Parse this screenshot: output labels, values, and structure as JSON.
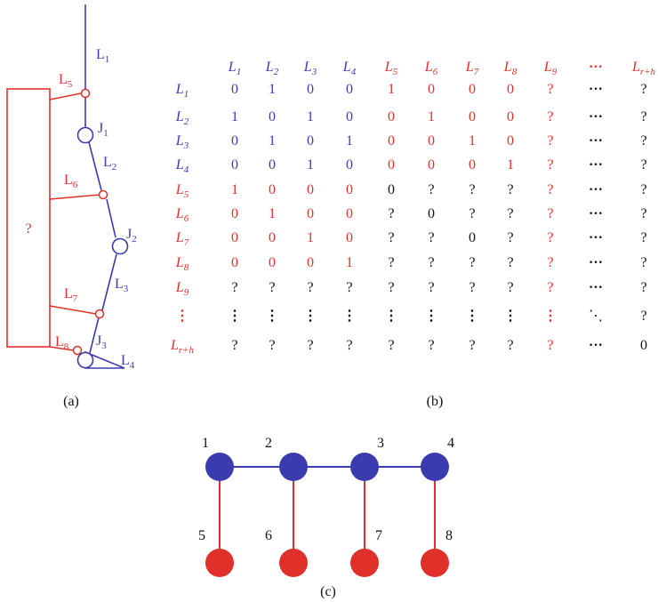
{
  "colors": {
    "blue": "#3b3bb0",
    "red": "#e0302a",
    "black": "#111111"
  },
  "panel_a": {
    "caption": "(a)",
    "box_label": "?",
    "links": [
      {
        "id": "L1",
        "base": "L",
        "sub": "1",
        "color": "blue"
      },
      {
        "id": "L2",
        "base": "L",
        "sub": "2",
        "color": "blue"
      },
      {
        "id": "L3",
        "base": "L",
        "sub": "3",
        "color": "blue"
      },
      {
        "id": "L4",
        "base": "L",
        "sub": "4",
        "color": "blue"
      },
      {
        "id": "L5",
        "base": "L",
        "sub": "5",
        "color": "red"
      },
      {
        "id": "L6",
        "base": "L",
        "sub": "6",
        "color": "red"
      },
      {
        "id": "L7",
        "base": "L",
        "sub": "7",
        "color": "red"
      },
      {
        "id": "L8",
        "base": "L",
        "sub": "8",
        "color": "red"
      }
    ],
    "joints": [
      {
        "id": "J1",
        "base": "J",
        "sub": "1"
      },
      {
        "id": "J2",
        "base": "J",
        "sub": "2"
      },
      {
        "id": "J3",
        "base": "J",
        "sub": "3"
      }
    ]
  },
  "panel_b": {
    "caption": "(b)",
    "columns": [
      {
        "base": "L",
        "sub": "1",
        "color": "blue"
      },
      {
        "base": "L",
        "sub": "2",
        "color": "blue"
      },
      {
        "base": "L",
        "sub": "3",
        "color": "blue"
      },
      {
        "base": "L",
        "sub": "4",
        "color": "blue"
      },
      {
        "base": "L",
        "sub": "5",
        "color": "red"
      },
      {
        "base": "L",
        "sub": "6",
        "color": "red"
      },
      {
        "base": "L",
        "sub": "7",
        "color": "red"
      },
      {
        "base": "L",
        "sub": "8",
        "color": "red"
      },
      {
        "base": "L",
        "sub": "9",
        "color": "red"
      },
      {
        "base": "···",
        "sub": "",
        "color": "red"
      },
      {
        "base": "L",
        "sub": "r+h",
        "color": "red"
      }
    ],
    "rows": [
      {
        "label": {
          "base": "L",
          "sub": "1",
          "color": "blue"
        },
        "cells": [
          [
            "0",
            "blue"
          ],
          [
            "1",
            "blue"
          ],
          [
            "0",
            "blue"
          ],
          [
            "0",
            "blue"
          ],
          [
            "1",
            "red"
          ],
          [
            "0",
            "red"
          ],
          [
            "0",
            "red"
          ],
          [
            "0",
            "red"
          ],
          [
            "?",
            "red"
          ],
          [
            "···",
            "black"
          ],
          [
            "?",
            "black"
          ]
        ]
      },
      {
        "label": {
          "base": "L",
          "sub": "2",
          "color": "blue"
        },
        "cells": [
          [
            "1",
            "blue"
          ],
          [
            "0",
            "blue"
          ],
          [
            "1",
            "blue"
          ],
          [
            "0",
            "blue"
          ],
          [
            "0",
            "red"
          ],
          [
            "1",
            "red"
          ],
          [
            "0",
            "red"
          ],
          [
            "0",
            "red"
          ],
          [
            "?",
            "red"
          ],
          [
            "···",
            "black"
          ],
          [
            "?",
            "black"
          ]
        ]
      },
      {
        "label": {
          "base": "L",
          "sub": "3",
          "color": "blue"
        },
        "cells": [
          [
            "0",
            "blue"
          ],
          [
            "1",
            "blue"
          ],
          [
            "0",
            "blue"
          ],
          [
            "1",
            "blue"
          ],
          [
            "0",
            "red"
          ],
          [
            "0",
            "red"
          ],
          [
            "1",
            "red"
          ],
          [
            "0",
            "red"
          ],
          [
            "?",
            "red"
          ],
          [
            "···",
            "black"
          ],
          [
            "?",
            "black"
          ]
        ]
      },
      {
        "label": {
          "base": "L",
          "sub": "4",
          "color": "blue"
        },
        "cells": [
          [
            "0",
            "blue"
          ],
          [
            "0",
            "blue"
          ],
          [
            "1",
            "blue"
          ],
          [
            "0",
            "blue"
          ],
          [
            "0",
            "red"
          ],
          [
            "0",
            "red"
          ],
          [
            "0",
            "red"
          ],
          [
            "1",
            "red"
          ],
          [
            "?",
            "red"
          ],
          [
            "···",
            "black"
          ],
          [
            "?",
            "black"
          ]
        ]
      },
      {
        "label": {
          "base": "L",
          "sub": "5",
          "color": "red"
        },
        "cells": [
          [
            "1",
            "red"
          ],
          [
            "0",
            "red"
          ],
          [
            "0",
            "red"
          ],
          [
            "0",
            "red"
          ],
          [
            "0",
            "black"
          ],
          [
            "?",
            "black"
          ],
          [
            "?",
            "black"
          ],
          [
            "?",
            "black"
          ],
          [
            "?",
            "red"
          ],
          [
            "···",
            "black"
          ],
          [
            "?",
            "black"
          ]
        ]
      },
      {
        "label": {
          "base": "L",
          "sub": "6",
          "color": "red"
        },
        "cells": [
          [
            "0",
            "red"
          ],
          [
            "1",
            "red"
          ],
          [
            "0",
            "red"
          ],
          [
            "0",
            "red"
          ],
          [
            "?",
            "black"
          ],
          [
            "0",
            "black"
          ],
          [
            "?",
            "black"
          ],
          [
            "?",
            "black"
          ],
          [
            "?",
            "red"
          ],
          [
            "···",
            "black"
          ],
          [
            "?",
            "black"
          ]
        ]
      },
      {
        "label": {
          "base": "L",
          "sub": "7",
          "color": "red"
        },
        "cells": [
          [
            "0",
            "red"
          ],
          [
            "0",
            "red"
          ],
          [
            "1",
            "red"
          ],
          [
            "0",
            "red"
          ],
          [
            "?",
            "black"
          ],
          [
            "?",
            "black"
          ],
          [
            "0",
            "black"
          ],
          [
            "?",
            "black"
          ],
          [
            "?",
            "red"
          ],
          [
            "···",
            "black"
          ],
          [
            "?",
            "black"
          ]
        ]
      },
      {
        "label": {
          "base": "L",
          "sub": "8",
          "color": "red"
        },
        "cells": [
          [
            "0",
            "red"
          ],
          [
            "0",
            "red"
          ],
          [
            "0",
            "red"
          ],
          [
            "1",
            "red"
          ],
          [
            "?",
            "black"
          ],
          [
            "?",
            "black"
          ],
          [
            "?",
            "black"
          ],
          [
            "?",
            "black"
          ],
          [
            "?",
            "red"
          ],
          [
            "···",
            "black"
          ],
          [
            "?",
            "black"
          ]
        ]
      },
      {
        "label": {
          "base": "L",
          "sub": "9",
          "color": "red"
        },
        "cells": [
          [
            "?",
            "black"
          ],
          [
            "?",
            "black"
          ],
          [
            "?",
            "black"
          ],
          [
            "?",
            "black"
          ],
          [
            "?",
            "black"
          ],
          [
            "?",
            "black"
          ],
          [
            "?",
            "black"
          ],
          [
            "?",
            "black"
          ],
          [
            "?",
            "red"
          ],
          [
            "···",
            "black"
          ],
          [
            "?",
            "black"
          ]
        ]
      },
      {
        "label": {
          "base": "⋮",
          "sub": "",
          "color": "red"
        },
        "cells": [
          [
            "⋮",
            "black"
          ],
          [
            "⋮",
            "black"
          ],
          [
            "⋮",
            "black"
          ],
          [
            "⋮",
            "black"
          ],
          [
            "⋮",
            "black"
          ],
          [
            "⋮",
            "black"
          ],
          [
            "⋮",
            "black"
          ],
          [
            "⋮",
            "black"
          ],
          [
            "⋮",
            "red"
          ],
          [
            "⋱",
            "black"
          ],
          [
            "?",
            "black"
          ]
        ]
      },
      {
        "label": {
          "base": "L",
          "sub": "r+h",
          "color": "red"
        },
        "cells": [
          [
            "?",
            "black"
          ],
          [
            "?",
            "black"
          ],
          [
            "?",
            "black"
          ],
          [
            "?",
            "black"
          ],
          [
            "?",
            "black"
          ],
          [
            "?",
            "black"
          ],
          [
            "?",
            "black"
          ],
          [
            "?",
            "black"
          ],
          [
            "?",
            "red"
          ],
          [
            "···",
            "black"
          ],
          [
            "0",
            "black"
          ]
        ]
      }
    ]
  },
  "panel_c": {
    "caption": "(c)",
    "top_nodes": [
      "1",
      "2",
      "3",
      "4"
    ],
    "bottom_nodes": [
      "5",
      "6",
      "7",
      "8"
    ]
  }
}
